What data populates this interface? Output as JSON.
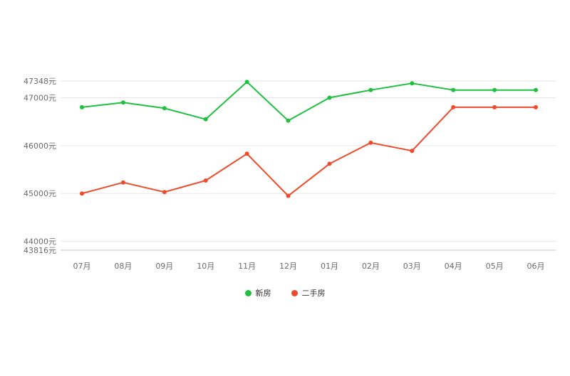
{
  "chart_data": {
    "type": "line",
    "categories": [
      "07月",
      "08月",
      "09月",
      "10月",
      "11月",
      "12月",
      "01月",
      "02月",
      "03月",
      "04月",
      "05月",
      "06月"
    ],
    "series": [
      {
        "name": "新房",
        "color": "#1ec13f",
        "values": [
          46800,
          46900,
          46780,
          46550,
          47330,
          46520,
          47000,
          47160,
          47300,
          47160,
          47160,
          47160
        ]
      },
      {
        "name": "二手房",
        "color": "#ee4a2c",
        "values": [
          45000,
          45230,
          45030,
          45270,
          45830,
          44950,
          45620,
          46060,
          45890,
          46800,
          46800,
          46800
        ]
      }
    ],
    "yticks": [
      {
        "value": 43816,
        "label": "43816元"
      },
      {
        "value": 44000,
        "label": "44000元"
      },
      {
        "value": 45000,
        "label": "45000元"
      },
      {
        "value": 46000,
        "label": "46000元"
      },
      {
        "value": 47000,
        "label": "47000元"
      },
      {
        "value": 47348,
        "label": "47348元"
      }
    ],
    "ylim": [
      43816,
      47348
    ],
    "grid": true,
    "legend_position": "bottom"
  }
}
